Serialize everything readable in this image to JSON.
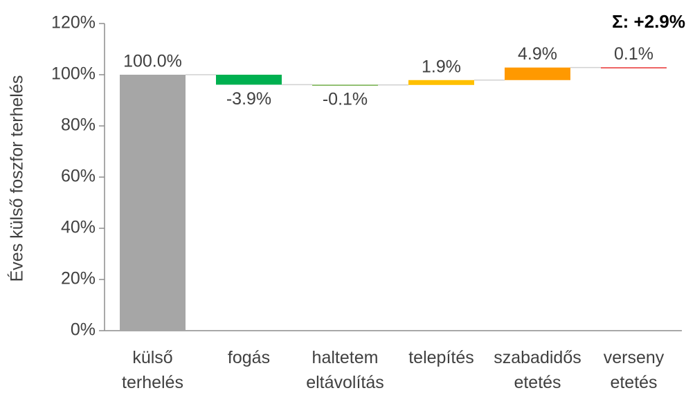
{
  "chart_data": {
    "type": "waterfall",
    "y_label": "Éves külső foszfor terhelés",
    "annotation": "Σ: +2.9%",
    "categories": [
      [
        "külső",
        "terhelés"
      ],
      [
        "fogás"
      ],
      [
        "haltetem",
        "eltávolítás"
      ],
      [
        "telepítés"
      ],
      [
        "szabadidős",
        "etetés"
      ],
      [
        "verseny",
        "etetés"
      ]
    ],
    "values": [
      100,
      -3.9,
      -0.1,
      1.9,
      4.9,
      0.1
    ],
    "value_labels": [
      "100.0%",
      "-3.9%",
      "-0.1%",
      "1.9%",
      "4.9%",
      "0.1%"
    ],
    "colors": [
      "#a6a6a6",
      "#00b050",
      "#70ad47",
      "#ffc000",
      "#ff9900",
      "#e83030"
    ],
    "ylim": [
      0,
      120
    ],
    "yticks": [
      {
        "value": 0,
        "label": "0%"
      },
      {
        "value": 20,
        "label": "20%"
      },
      {
        "value": 40,
        "label": "40%"
      },
      {
        "value": 60,
        "label": "60%"
      },
      {
        "value": 80,
        "label": "80%"
      },
      {
        "value": 100,
        "label": "100%"
      },
      {
        "value": 120,
        "label": "120%"
      }
    ]
  }
}
